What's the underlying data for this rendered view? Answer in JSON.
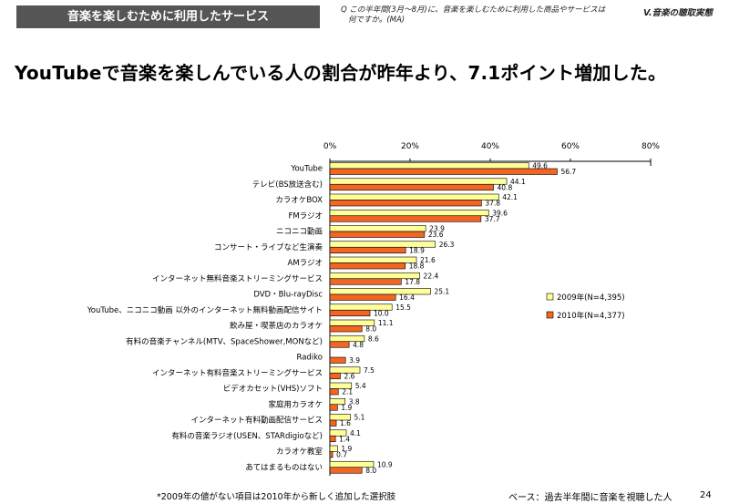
{
  "header": {
    "section_label": "音楽を楽しむために利用したサービス",
    "question_line1": "Q この半年間(3月～8月)に、音楽を楽しむために利用した商品やサービスは",
    "question_line2": "何ですか。(MA)",
    "chapter": "V.音楽の聴取実態"
  },
  "headline": "YouTubeで音楽を楽しんでいる人の割合が昨年より、7.1ポイント増加した。",
  "footer": {
    "note": "*2009年の値がない項目は2010年から新しく追加した選択肢",
    "base": "ベース：過去半年間に音楽を視聴した人",
    "page": "24"
  },
  "colors": {
    "series_2009": "#ffff99",
    "series_2010": "#f26522",
    "bar_border": "#000000"
  },
  "chart_data": {
    "type": "bar",
    "orientation": "horizontal",
    "xlim": [
      0,
      80
    ],
    "ticks": [
      "0%",
      "20%",
      "40%",
      "60%",
      "80%"
    ],
    "tick_values": [
      0,
      20,
      40,
      60,
      80
    ],
    "legend_position": "right",
    "categories": [
      "YouTube",
      "テレビ(BS放送含む)",
      "カラオケBOX",
      "FMラジオ",
      "ニコニコ動画",
      "コンサート・ライブなど生演奏",
      "AMラジオ",
      "インターネット無料音楽ストリーミングサービス",
      "DVD・Blu-rayDisc",
      "YouTube、ニコニコ動画 以外のインターネット無料動画配信サイト",
      "飲み屋・喫茶店のカラオケ",
      "有料の音楽チャンネル(MTV、SpaceShower,MONなど)",
      "Radiko",
      "インターネット有料音楽ストリーミングサービス",
      "ビデオカセット(VHS)ソフト",
      "家庭用カラオケ",
      "インターネット有料動画配信サービス",
      "有料の音楽ラジオ(USEN、STARdigioなど)",
      "カラオケ教室",
      "あてはまるものはない"
    ],
    "series": [
      {
        "name": "2009年(N=4,395)",
        "values": [
          49.6,
          44.1,
          42.1,
          39.6,
          23.9,
          26.3,
          21.6,
          22.4,
          25.1,
          15.5,
          11.1,
          8.6,
          null,
          7.5,
          5.4,
          3.8,
          5.1,
          4.1,
          1.9,
          10.9
        ],
        "labels": [
          "49.6",
          "44.1",
          "42.1",
          "39.6",
          "23.9",
          "26.3",
          "21.6",
          "22.4",
          "25.1",
          "15.5",
          "11.1",
          "8.6",
          "",
          "7.5",
          "5.4",
          "3.8",
          "5.1",
          "4.1",
          "1.9",
          "10.9"
        ]
      },
      {
        "name": "2010年(N=4,377)",
        "values": [
          56.7,
          40.8,
          37.8,
          37.7,
          23.6,
          18.9,
          18.8,
          17.8,
          16.4,
          10.0,
          8.0,
          4.8,
          3.9,
          2.6,
          2.1,
          1.9,
          1.6,
          1.4,
          0.7,
          8.0
        ],
        "labels": [
          "56.7",
          "40.8",
          "37.8",
          "37.7",
          "23.6",
          "18.9",
          "18.8",
          "17.8",
          "16.4",
          "10.0",
          "8.0",
          "4.8",
          "3.9",
          "2.6",
          "2.1",
          "1.9",
          "1.6",
          "1.4",
          "0.7",
          "8.0"
        ]
      }
    ]
  }
}
